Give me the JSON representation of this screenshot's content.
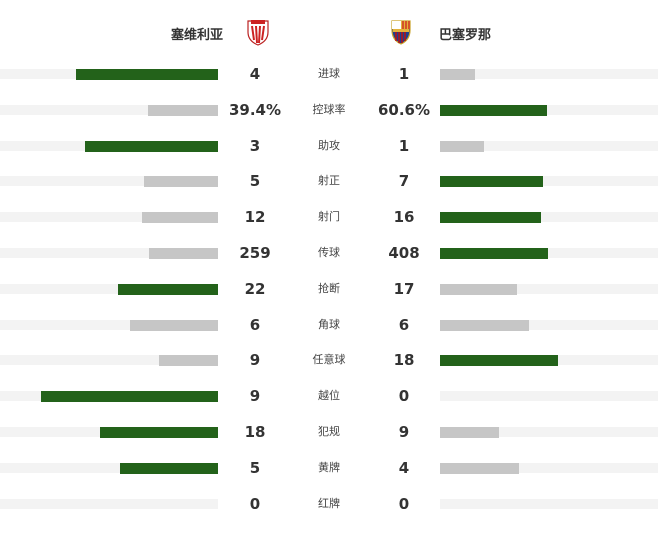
{
  "home": {
    "name": "塞维利亚",
    "badge": "sevilla-badge-icon"
  },
  "away": {
    "name": "巴塞罗那",
    "badge": "barcelona-badge-icon"
  },
  "colors": {
    "leader": "#23621a",
    "other": "#c6c6c6",
    "track": "#f3f3f3"
  },
  "stats": [
    {
      "label": "进球",
      "home": "4",
      "away": "1",
      "hv": 4,
      "av": 1
    },
    {
      "label": "控球率",
      "home": "39.4%",
      "away": "60.6%",
      "hv": 39.4,
      "av": 60.6
    },
    {
      "label": "助攻",
      "home": "3",
      "away": "1",
      "hv": 3,
      "av": 1
    },
    {
      "label": "射正",
      "home": "5",
      "away": "7",
      "hv": 5,
      "av": 7
    },
    {
      "label": "射门",
      "home": "12",
      "away": "16",
      "hv": 12,
      "av": 16
    },
    {
      "label": "传球",
      "home": "259",
      "away": "408",
      "hv": 259,
      "av": 408
    },
    {
      "label": "抢断",
      "home": "22",
      "away": "17",
      "hv": 22,
      "av": 17
    },
    {
      "label": "角球",
      "home": "6",
      "away": "6",
      "hv": 6,
      "av": 6
    },
    {
      "label": "任意球",
      "home": "9",
      "away": "18",
      "hv": 9,
      "av": 18
    },
    {
      "label": "越位",
      "home": "9",
      "away": "0",
      "hv": 9,
      "av": 0
    },
    {
      "label": "犯规",
      "home": "18",
      "away": "9",
      "hv": 18,
      "av": 9
    },
    {
      "label": "黄牌",
      "home": "5",
      "away": "4",
      "hv": 5,
      "av": 4
    },
    {
      "label": "红牌",
      "home": "0",
      "away": "0",
      "hv": 0,
      "av": 0
    }
  ]
}
